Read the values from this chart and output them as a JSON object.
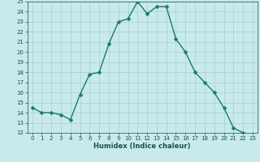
{
  "x": [
    0,
    1,
    2,
    3,
    4,
    5,
    6,
    7,
    8,
    9,
    10,
    11,
    12,
    13,
    14,
    15,
    16,
    17,
    18,
    19,
    20,
    21,
    22,
    23
  ],
  "y": [
    14.5,
    14.0,
    14.0,
    13.8,
    13.3,
    15.8,
    17.8,
    18.0,
    20.8,
    23.0,
    23.3,
    25.0,
    23.8,
    24.5,
    24.5,
    21.3,
    20.0,
    18.0,
    17.0,
    16.0,
    14.5,
    12.5,
    12.0,
    11.8
  ],
  "xlabel": "Humidex (Indice chaleur)",
  "ylim": [
    12,
    25
  ],
  "xlim": [
    -0.5,
    23.5
  ],
  "yticks": [
    12,
    13,
    14,
    15,
    16,
    17,
    18,
    19,
    20,
    21,
    22,
    23,
    24,
    25
  ],
  "xticks": [
    0,
    1,
    2,
    3,
    4,
    5,
    6,
    7,
    8,
    9,
    10,
    11,
    12,
    13,
    14,
    15,
    16,
    17,
    18,
    19,
    20,
    21,
    22,
    23
  ],
  "line_color": "#1a7a6e",
  "marker_color": "#1a7a6e",
  "bg_color": "#c8eaea",
  "grid_color": "#a8d0d0",
  "tick_color": "#1a5050",
  "label_color": "#1a5050",
  "line_width": 1.0,
  "marker_size": 2.5
}
